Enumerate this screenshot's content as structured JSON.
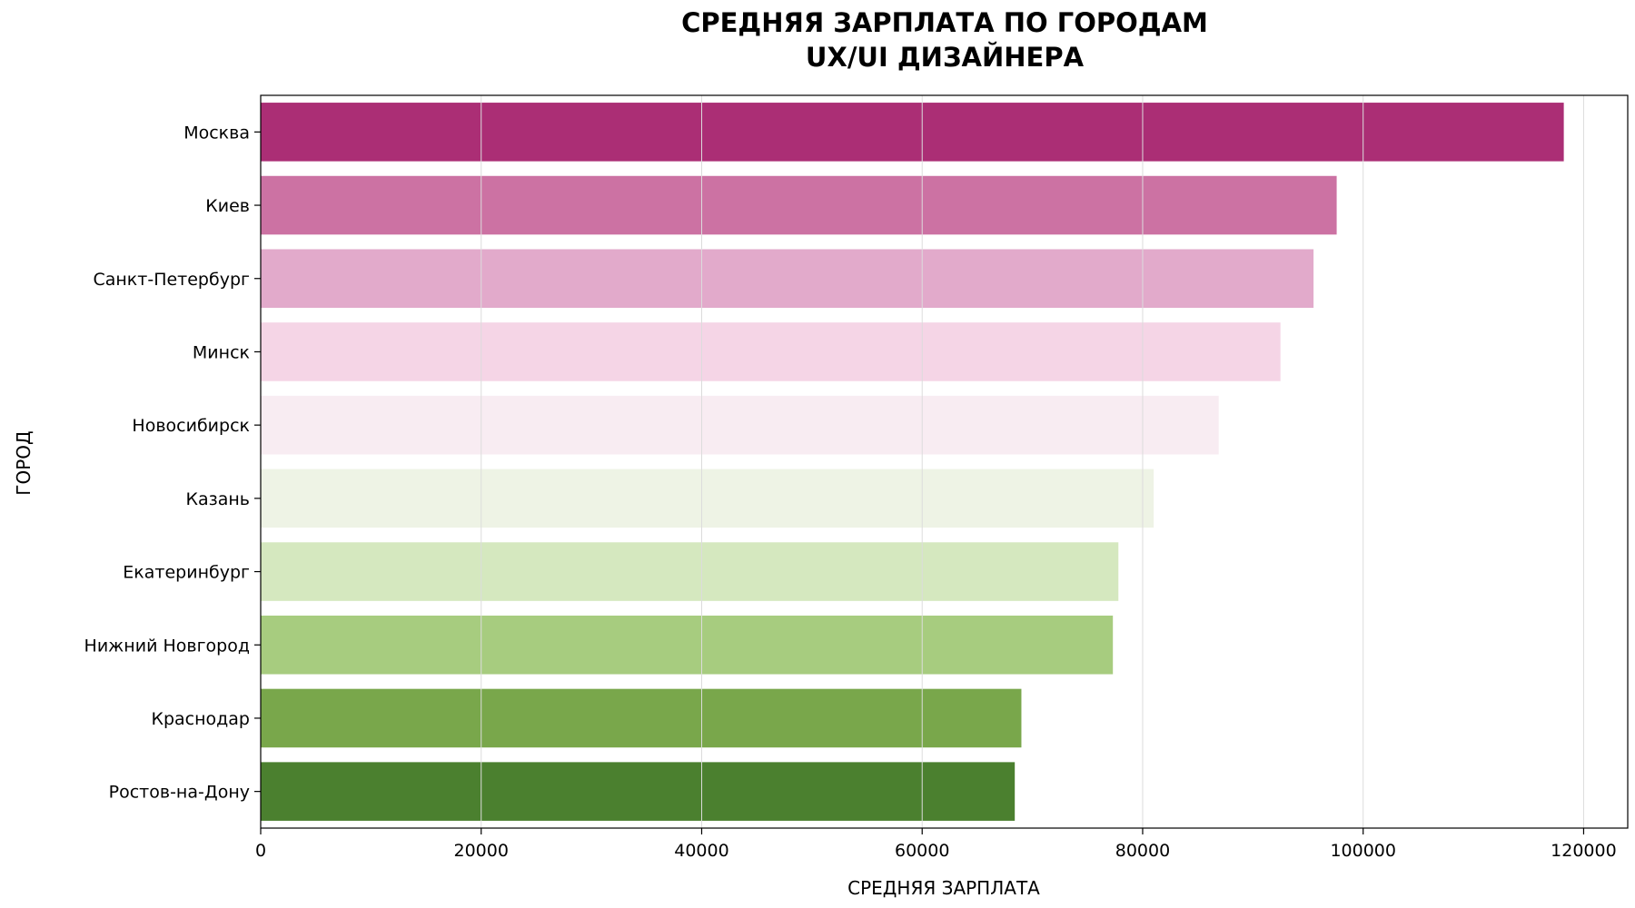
{
  "chart_data": {
    "type": "bar",
    "orientation": "horizontal",
    "title_lines": [
      "СРЕДНЯЯ ЗАРПЛАТА ПО ГОРОДАМ",
      "UX/UI ДИЗАЙНЕРА"
    ],
    "xlabel": "СРЕДНЯЯ ЗАРПЛАТА",
    "ylabel": "ГОРОД",
    "xlim": [
      0,
      124000
    ],
    "xticks": [
      0,
      20000,
      40000,
      60000,
      80000,
      100000,
      120000
    ],
    "grid": "vertical",
    "categories": [
      "Москва",
      "Киев",
      "Санкт-Петербург",
      "Минск",
      "Новосибирск",
      "Казань",
      "Екатеринбург",
      "Нижний Новгород",
      "Краснодар",
      "Ростов-на-Дону"
    ],
    "values": [
      118200,
      97600,
      95500,
      92500,
      86900,
      81000,
      77800,
      77300,
      69000,
      68400
    ],
    "colors": [
      "#ab2e75",
      "#cc72a3",
      "#e2aacb",
      "#f5d5e6",
      "#f8ecf2",
      "#eef3e5",
      "#d5e8bf",
      "#a7cc7f",
      "#79a74b",
      "#4b802f"
    ]
  }
}
